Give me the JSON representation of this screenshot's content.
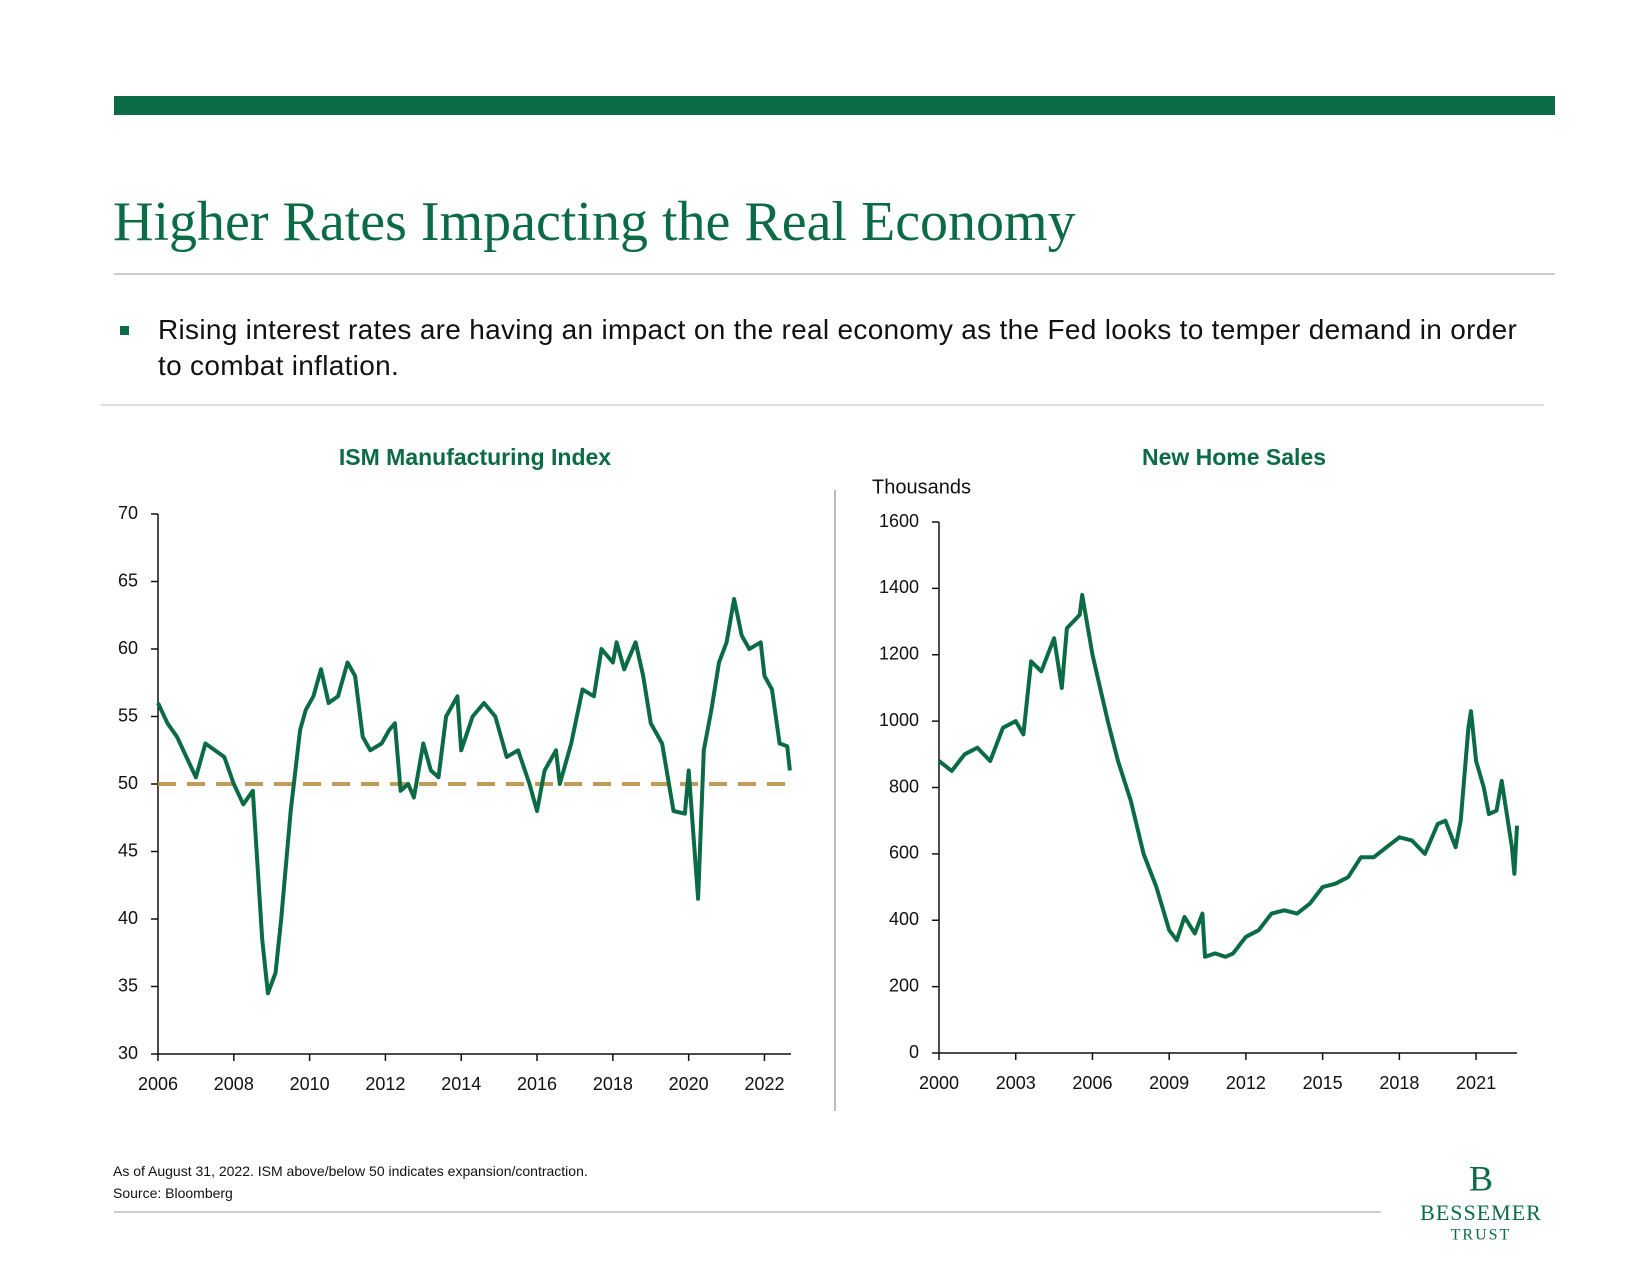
{
  "title": "Higher Rates Impacting the Real Economy",
  "bullet": "Rising interest rates are having an impact on the real economy as the Fed looks to temper demand in order to combat inflation.",
  "footnotes": [
    "As of August 31, 2022. ISM above/below 50 indicates expansion/contraction.",
    "Source: Bloomberg"
  ],
  "logo": {
    "monogram": "B",
    "name": "BESSEMER",
    "sub": "TRUST"
  },
  "chart_data": [
    {
      "type": "line",
      "title": "ISM Manufacturing Index",
      "xlim": [
        2006,
        2022.7
      ],
      "xticks": [
        2006,
        2008,
        2010,
        2012,
        2014,
        2016,
        2018,
        2020,
        2022
      ],
      "ylim": [
        30,
        70
      ],
      "yticks": [
        30,
        35,
        40,
        45,
        50,
        55,
        60,
        65,
        70
      ],
      "reference_line": {
        "value": 50,
        "color": "#c49a5a",
        "style": "dashed"
      },
      "series": [
        {
          "name": "ISM Manufacturing Index",
          "color": "#0a6b45",
          "x": [
            2006.0,
            2006.25,
            2006.5,
            2006.75,
            2007.0,
            2007.25,
            2007.5,
            2007.75,
            2008.0,
            2008.25,
            2008.5,
            2008.75,
            2008.9,
            2009.1,
            2009.25,
            2009.5,
            2009.75,
            2009.9,
            2010.1,
            2010.3,
            2010.5,
            2010.75,
            2011.0,
            2011.2,
            2011.4,
            2011.6,
            2011.9,
            2012.1,
            2012.25,
            2012.4,
            2012.6,
            2012.75,
            2013.0,
            2013.2,
            2013.4,
            2013.6,
            2013.9,
            2014.0,
            2014.3,
            2014.6,
            2014.9,
            2015.2,
            2015.5,
            2015.8,
            2016.0,
            2016.2,
            2016.5,
            2016.6,
            2016.9,
            2017.2,
            2017.5,
            2017.7,
            2018.0,
            2018.1,
            2018.3,
            2018.6,
            2018.8,
            2019.0,
            2019.3,
            2019.6,
            2019.9,
            2020.0,
            2020.25,
            2020.4,
            2020.6,
            2020.8,
            2021.0,
            2021.2,
            2021.4,
            2021.6,
            2021.9,
            2022.0,
            2022.2,
            2022.4,
            2022.6,
            2022.67
          ],
          "values": [
            56,
            54.5,
            53.5,
            52,
            50.5,
            53,
            52.5,
            52,
            50,
            48.5,
            49.5,
            38.5,
            34.5,
            36,
            40,
            48,
            54,
            55.5,
            56.5,
            58.5,
            56,
            56.5,
            59,
            58,
            53.5,
            52.5,
            53,
            54,
            54.5,
            49.5,
            50,
            49,
            53,
            51,
            50.5,
            55,
            56.5,
            52.5,
            55,
            56,
            55,
            52,
            52.5,
            50,
            48,
            51,
            52.5,
            50,
            53,
            57,
            56.5,
            60,
            59,
            60.5,
            58.5,
            60.5,
            58,
            54.5,
            53,
            48,
            47.8,
            51,
            41.5,
            52.5,
            55.5,
            59,
            60.5,
            63.7,
            61,
            60,
            60.5,
            58,
            57,
            53,
            52.8,
            51
          ]
        }
      ]
    },
    {
      "type": "line",
      "title": "New Home Sales",
      "y_label": "Thousands",
      "xlim": [
        2000,
        2022.6
      ],
      "xticks": [
        2000,
        2003,
        2006,
        2009,
        2012,
        2015,
        2018,
        2021
      ],
      "ylim": [
        0,
        1600
      ],
      "yticks": [
        0,
        200,
        400,
        600,
        800,
        1000,
        1200,
        1400,
        1600
      ],
      "series": [
        {
          "name": "New Home Sales",
          "color": "#0a6b45",
          "x": [
            2000,
            2000.5,
            2001,
            2001.5,
            2002,
            2002.5,
            2003,
            2003.3,
            2003.6,
            2004,
            2004.5,
            2004.8,
            2005,
            2005.5,
            2005.6,
            2006,
            2006.3,
            2006.6,
            2007,
            2007.5,
            2008,
            2008.5,
            2009,
            2009.3,
            2009.6,
            2010,
            2010.3,
            2010.4,
            2010.8,
            2011.2,
            2011.5,
            2012,
            2012.5,
            2013,
            2013.5,
            2014,
            2014.5,
            2015,
            2015.5,
            2016,
            2016.5,
            2017,
            2017.5,
            2018,
            2018.5,
            2019,
            2019.5,
            2019.8,
            2020.2,
            2020.4,
            2020.7,
            2020.8,
            2021.0,
            2021.3,
            2021.5,
            2021.8,
            2022.0,
            2022.2,
            2022.4,
            2022.5,
            2022.6
          ],
          "values": [
            880,
            850,
            900,
            920,
            880,
            980,
            1000,
            960,
            1180,
            1150,
            1250,
            1100,
            1280,
            1320,
            1380,
            1200,
            1100,
            1000,
            880,
            760,
            600,
            500,
            370,
            340,
            410,
            360,
            420,
            290,
            300,
            290,
            300,
            350,
            370,
            420,
            430,
            420,
            450,
            500,
            510,
            530,
            590,
            590,
            620,
            650,
            640,
            600,
            690,
            700,
            620,
            700,
            980,
            1030,
            880,
            800,
            720,
            730,
            820,
            720,
            620,
            540,
            685
          ]
        }
      ]
    }
  ]
}
